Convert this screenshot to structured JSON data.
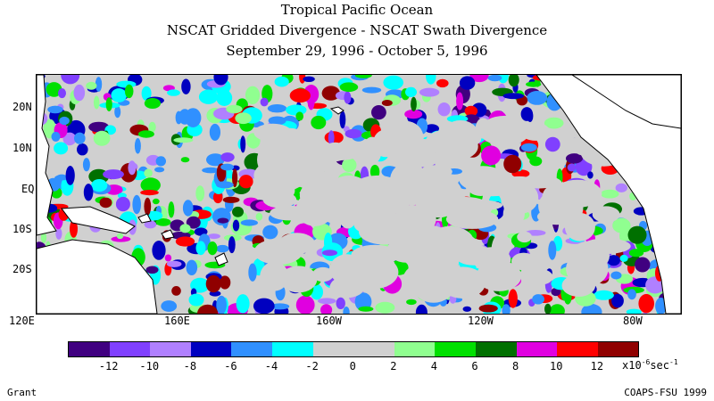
{
  "title": {
    "line1": "Tropical Pacific Ocean",
    "line2": "NSCAT Gridded Divergence - NSCAT Swath Divergence",
    "line3": "September 29, 1996 - October 5, 1996"
  },
  "map": {
    "lat_labels": [
      "20N",
      "10N",
      "EQ",
      "10S",
      "20S"
    ],
    "lon_labels": [
      "120E",
      "160E",
      "160W",
      "120W",
      "80W"
    ],
    "land_color": "#ffffff",
    "no_data_color": "#ffffff"
  },
  "legend": {
    "colors": [
      "#400080",
      "#8040ff",
      "#b080ff",
      "#0000c0",
      "#3090ff",
      "#00ffff",
      "#d0d0d0",
      "#d0d0d0",
      "#90ff90",
      "#00e000",
      "#007000",
      "#e000e0",
      "#ff0000",
      "#900000"
    ],
    "tick_labels": [
      "-12",
      "-10",
      "-8",
      "-6",
      "-4",
      "-2",
      "0",
      "2",
      "4",
      "6",
      "8",
      "10",
      "12"
    ],
    "units_base": "x10",
    "units_exp": "-6",
    "units_tail": "sec",
    "units_tail_exp": "-1"
  },
  "credits": {
    "left": "Grant",
    "right": "COAPS-FSU 1999"
  }
}
